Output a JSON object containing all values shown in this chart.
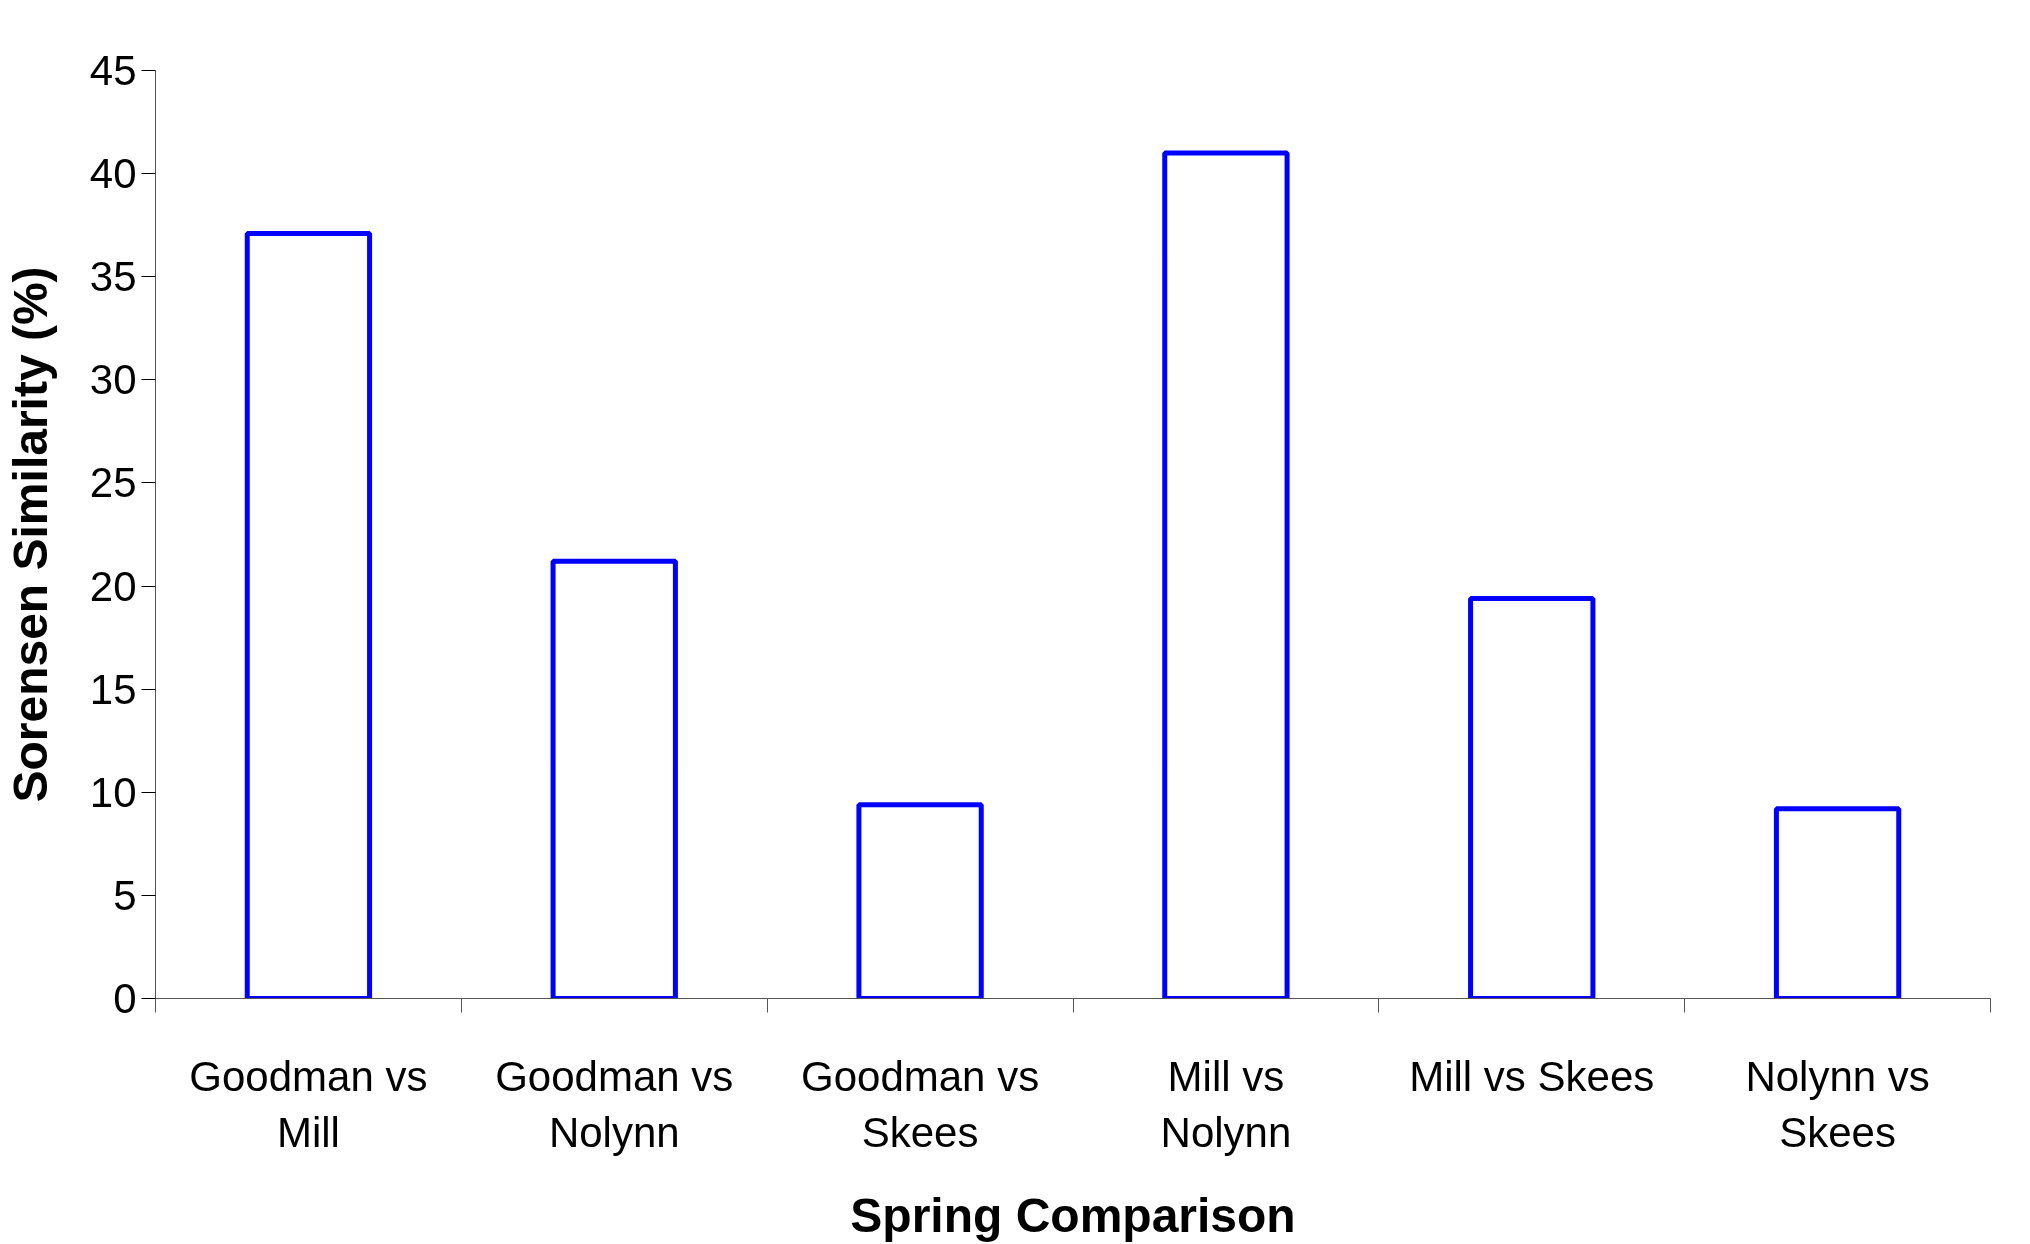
{
  "chart_data": {
    "type": "bar",
    "xlabel": "Spring Comparison",
    "ylabel": "Sorensen Similarity (%)",
    "categories": [
      "Goodman vs Mill",
      "Goodman vs Nolynn",
      "Goodman vs Skees",
      "Mill vs Nolynn",
      "Mill vs Skees",
      "Nolynn vs Skees"
    ],
    "values": [
      37.1,
      21.2,
      9.4,
      41.0,
      19.4,
      9.2
    ],
    "color": "#0000ff",
    "ylim": [
      0,
      45
    ],
    "yticks": [
      0,
      5,
      10,
      15,
      20,
      25,
      30,
      35,
      40,
      45
    ],
    "grid": false
  }
}
